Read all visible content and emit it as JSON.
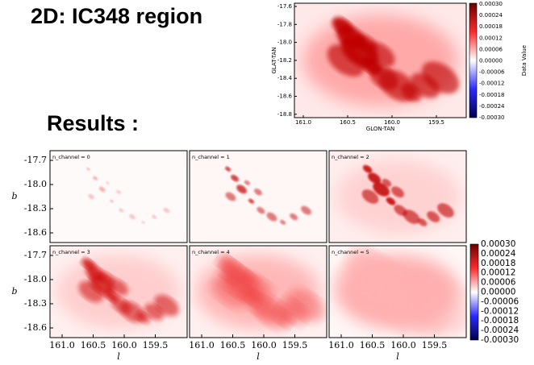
{
  "title": "2D: IC348 region",
  "map": {
    "y_label": "GLAT-TAN",
    "x_label": "GLON-TAN",
    "yticks": [
      "-17.6",
      "-17.8",
      "-18.0",
      "-18.2",
      "-18.4",
      "-18.6",
      "-18.8"
    ],
    "xticks": [
      "161.0",
      "160.5",
      "160.0",
      "159.5"
    ],
    "colorbar": {
      "label": "Data Value",
      "ticks": [
        "0.00030",
        "0.00024",
        "0.00018",
        "0.00012",
        "0.00006",
        "0.00000",
        "-0.00006",
        "-0.00012",
        "-0.00018",
        "-0.00024",
        "-0.00030"
      ]
    }
  },
  "results": {
    "heading": "Results :",
    "y_label": "b",
    "x_label": "l",
    "yticks": [
      "-17.7",
      "-18.0",
      "-18.3",
      "-18.6"
    ],
    "xticks": [
      "161.0",
      "160.5",
      "160.0",
      "159.5"
    ],
    "panels": [
      "n_channel = 0",
      "n_channel = 1",
      "n_channel = 2",
      "n_channel = 3",
      "n_channel = 4",
      "n_channel = 5"
    ],
    "colorbar": {
      "ticks": [
        "0.00030",
        "0.00024",
        "0.00018",
        "0.00012",
        "0.00006",
        "0.00000",
        "-0.00006",
        "-0.00012",
        "-0.00018",
        "-0.00024",
        "-0.00030"
      ]
    }
  }
}
